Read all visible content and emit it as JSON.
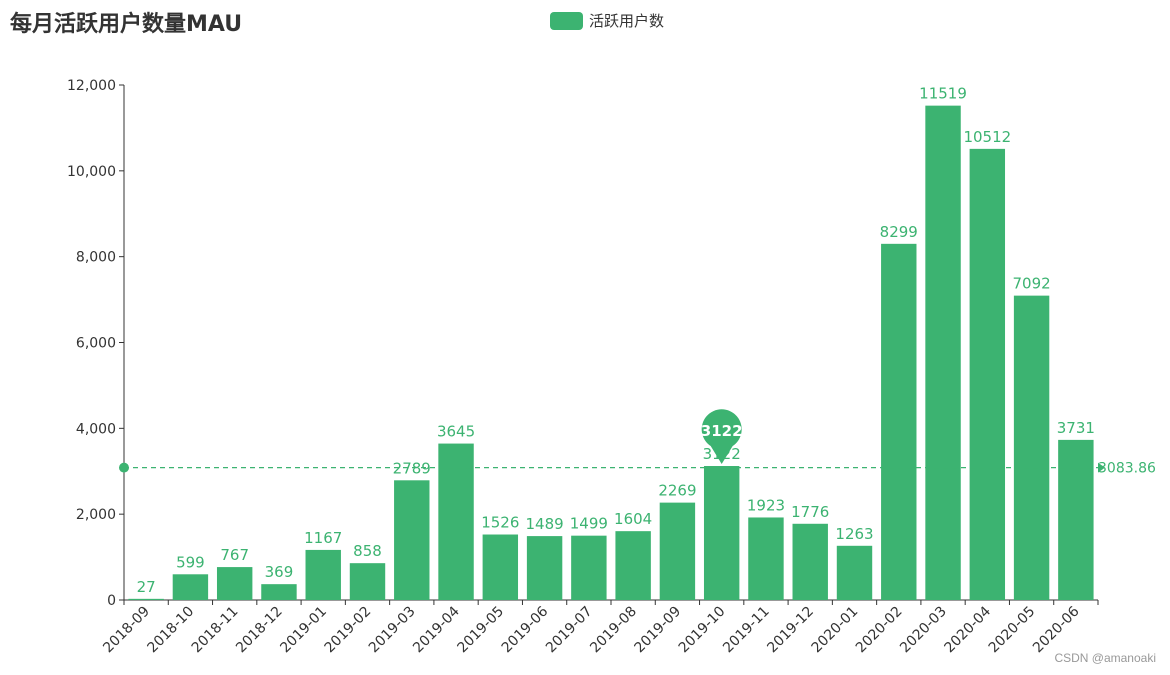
{
  "title": "每月活跃用户数量MAU",
  "legend": {
    "label": "活跃用户数"
  },
  "watermark": "CSDN @amanoaki",
  "colors": {
    "bar": "#3cb371",
    "axis": "#333333",
    "text": "#333333"
  },
  "chart_data": {
    "type": "bar",
    "categories": [
      "2018-09",
      "2018-10",
      "2018-11",
      "2018-12",
      "2019-01",
      "2019-02",
      "2019-03",
      "2019-04",
      "2019-05",
      "2019-06",
      "2019-07",
      "2019-08",
      "2019-09",
      "2019-10",
      "2019-11",
      "2019-12",
      "2020-01",
      "2020-02",
      "2020-03",
      "2020-04",
      "2020-05",
      "2020-06"
    ],
    "series": [
      {
        "name": "活跃用户数",
        "values": [
          27,
          599,
          767,
          369,
          1167,
          858,
          2789,
          3645,
          1526,
          1489,
          1499,
          1604,
          2269,
          3122,
          1923,
          1776,
          1263,
          8299,
          11519,
          10512,
          7092,
          3731
        ]
      }
    ],
    "ylim": [
      0,
      12000
    ],
    "yticks": [
      "0",
      "2,000",
      "4,000",
      "6,000",
      "8,000",
      "10,000",
      "12,000"
    ],
    "ytick_values": [
      0,
      2000,
      4000,
      6000,
      8000,
      10000,
      12000
    ],
    "mark_point": {
      "category": "2019-10",
      "value": 3122,
      "label": "3122"
    },
    "mark_line": {
      "value": 3083.86,
      "label": "3083.86"
    },
    "grid": false,
    "legend_position": "top-center"
  }
}
